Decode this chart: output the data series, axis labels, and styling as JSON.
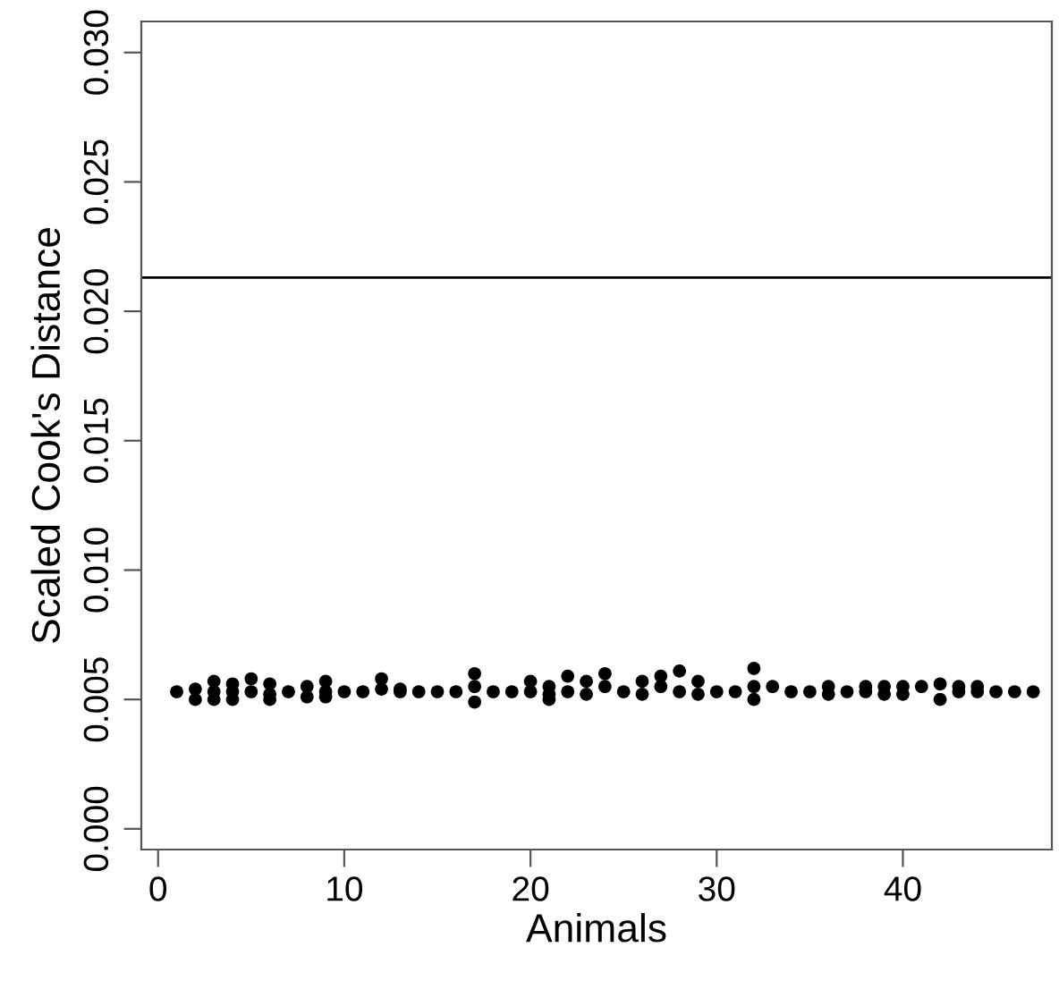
{
  "chart_data": {
    "type": "scatter",
    "xlabel": "Animals",
    "ylabel": "Scaled Cook's Distance",
    "xlim": [
      -0.9,
      48
    ],
    "xticks": [
      0,
      10,
      20,
      30,
      40
    ],
    "ylim": [
      -0.0008,
      0.0312
    ],
    "yticks": [
      {
        "value": 0,
        "label": "0.000"
      },
      {
        "value": 0.005,
        "label": "0.005"
      },
      {
        "value": 0.01,
        "label": "0.010"
      },
      {
        "value": 0.015,
        "label": "0.015"
      },
      {
        "value": 0.02,
        "label": "0.020"
      },
      {
        "value": 0.025,
        "label": "0.025"
      },
      {
        "value": 0.03,
        "label": "0.030"
      }
    ],
    "marker": "circle",
    "grid": false,
    "ref_lines": [
      {
        "axis": "y",
        "value": 0.0213,
        "color": "#000000"
      }
    ],
    "series": [
      {
        "color": "#000000",
        "x": [
          1,
          2,
          2,
          3,
          3,
          3,
          4,
          4,
          4,
          5,
          5,
          6,
          6,
          6,
          7,
          8,
          8,
          9,
          9,
          9,
          10,
          11,
          12,
          12,
          13,
          13,
          14,
          15,
          16,
          17,
          17,
          17,
          18,
          19,
          20,
          20,
          21,
          21,
          21,
          22,
          22,
          23,
          23,
          24,
          24,
          25,
          26,
          26,
          27,
          27,
          28,
          28,
          29,
          29,
          30,
          31,
          32,
          32,
          32,
          33,
          34,
          35,
          36,
          36,
          37,
          38,
          38,
          39,
          39,
          40,
          40,
          41,
          42,
          42,
          43,
          43,
          44,
          44,
          45,
          46,
          47
        ],
        "values": [
          0.0053,
          0.0054,
          0.005,
          0.0057,
          0.0053,
          0.005,
          0.0056,
          0.0053,
          0.005,
          0.0058,
          0.0053,
          0.0056,
          0.0052,
          0.005,
          0.0053,
          0.0055,
          0.0051,
          0.0057,
          0.0053,
          0.0051,
          0.0053,
          0.0053,
          0.0058,
          0.0054,
          0.0054,
          0.0053,
          0.0053,
          0.0053,
          0.0053,
          0.006,
          0.0055,
          0.0049,
          0.0053,
          0.0053,
          0.0057,
          0.0053,
          0.0055,
          0.0052,
          0.005,
          0.0059,
          0.0053,
          0.0057,
          0.0052,
          0.006,
          0.0055,
          0.0053,
          0.0057,
          0.0052,
          0.0059,
          0.0055,
          0.0061,
          0.0053,
          0.0057,
          0.0052,
          0.0053,
          0.0053,
          0.0062,
          0.0055,
          0.005,
          0.0055,
          0.0053,
          0.0053,
          0.0055,
          0.0052,
          0.0053,
          0.0055,
          0.0053,
          0.0055,
          0.0052,
          0.0055,
          0.0052,
          0.0055,
          0.0056,
          0.005,
          0.0055,
          0.0053,
          0.0055,
          0.0053,
          0.0053,
          0.0053,
          0.0053
        ]
      }
    ]
  }
}
